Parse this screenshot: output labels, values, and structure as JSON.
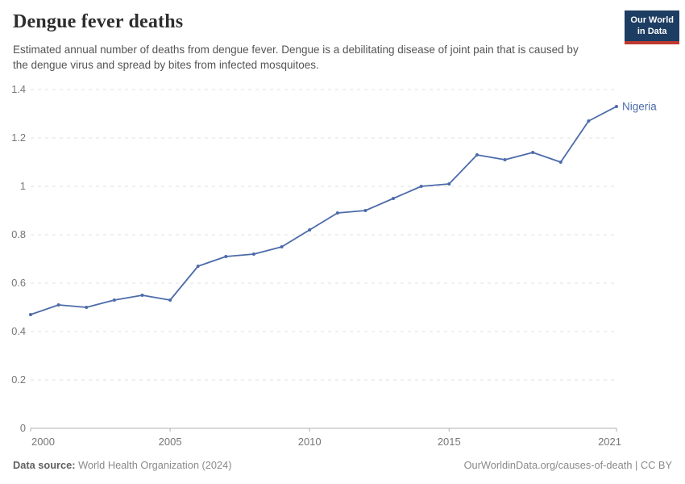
{
  "header": {
    "title": "Dengue fever deaths",
    "subtitle": "Estimated annual number of deaths from dengue fever. Dengue is a debilitating disease of joint pain that is caused by the dengue virus and spread by bites from infected mosquitoes.",
    "logo": {
      "line1": "Our World",
      "line2": "in Data"
    }
  },
  "chart_data": {
    "type": "line",
    "title": "Dengue fever deaths",
    "x": [
      2000,
      2001,
      2002,
      2003,
      2004,
      2005,
      2006,
      2007,
      2008,
      2009,
      2010,
      2011,
      2012,
      2013,
      2014,
      2015,
      2016,
      2017,
      2018,
      2019,
      2020,
      2021
    ],
    "series": [
      {
        "name": "Nigeria",
        "values": [
          0.47,
          0.51,
          0.5,
          0.53,
          0.55,
          0.53,
          0.67,
          0.71,
          0.72,
          0.75,
          0.82,
          0.89,
          0.9,
          0.95,
          1.0,
          1.01,
          1.13,
          1.11,
          1.14,
          1.1,
          1.27,
          1.33
        ]
      }
    ],
    "xlabel": "",
    "ylabel": "",
    "xlim": [
      2000,
      2021
    ],
    "ylim": [
      0,
      1.4
    ],
    "xticks": [
      2000,
      2005,
      2010,
      2015,
      2021
    ],
    "yticks": [
      0,
      0.2,
      0.4,
      0.6,
      0.8,
      1,
      1.2,
      1.4
    ],
    "grid": "horizontal-dashed",
    "legend": "end-of-line-label"
  },
  "footer": {
    "source_label": "Data source:",
    "source_value": " World Health Organization (2024)",
    "attribution": "OurWorldinData.org/causes-of-death | CC BY"
  },
  "colors": {
    "line": "#4c6ba9",
    "entity_label": "#4c6ba9",
    "grid": "#e0e0e0",
    "axis": "#afafaf",
    "axis_label": "#767676",
    "logo_bg": "#1d3d63",
    "logo_stripe": "#bf392f"
  }
}
